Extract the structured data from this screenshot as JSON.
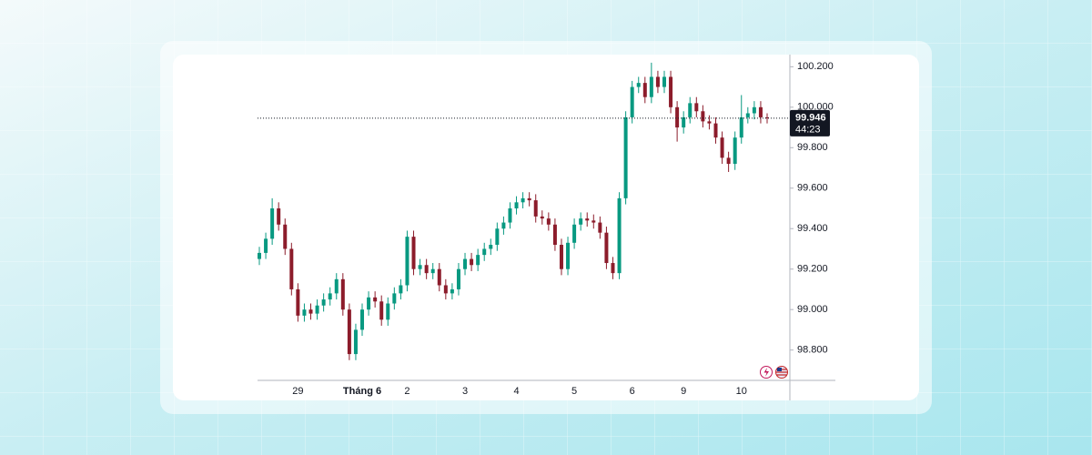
{
  "chart_data": {
    "type": "candlestick",
    "categories": [
      null,
      null,
      null,
      null,
      null,
      null,
      "29",
      null,
      null,
      null,
      null,
      null,
      null,
      null,
      null,
      null,
      "Tháng 6",
      null,
      null,
      null,
      null,
      null,
      null,
      "2",
      null,
      null,
      null,
      null,
      null,
      null,
      null,
      null,
      "3",
      null,
      null,
      null,
      null,
      null,
      null,
      null,
      "4",
      null,
      null,
      null,
      null,
      null,
      null,
      null,
      null,
      "5",
      null,
      null,
      null,
      null,
      null,
      null,
      null,
      null,
      "6",
      null,
      null,
      null,
      null,
      null,
      null,
      null,
      "9",
      null,
      null,
      null,
      null,
      null,
      null,
      null,
      null,
      "10",
      null,
      null,
      null,
      null
    ],
    "open": [
      99.25,
      99.28,
      99.35,
      99.5,
      99.42,
      99.3,
      99.1,
      98.97,
      99.0,
      98.98,
      99.02,
      99.05,
      99.08,
      99.15,
      99.0,
      98.78,
      98.9,
      99.0,
      99.06,
      99.04,
      98.95,
      99.03,
      99.08,
      99.12,
      99.36,
      99.2,
      99.22,
      99.18,
      99.2,
      99.12,
      99.08,
      99.1,
      99.2,
      99.25,
      99.22,
      99.27,
      99.3,
      99.32,
      99.4,
      99.43,
      99.5,
      99.53,
      99.55,
      99.54,
      99.46,
      99.45,
      99.42,
      99.32,
      99.2,
      99.33,
      99.42,
      99.45,
      99.44,
      99.43,
      99.38,
      99.23,
      99.18,
      99.55,
      99.95,
      100.1,
      100.12,
      100.05,
      100.15,
      100.1,
      100.15,
      100.0,
      99.9,
      99.95,
      100.02,
      99.98,
      99.93,
      99.92,
      99.85,
      99.75,
      99.72,
      99.85,
      99.95,
      99.97,
      100.0,
      99.95
    ],
    "high": [
      99.31,
      99.38,
      99.55,
      99.53,
      99.45,
      99.33,
      99.13,
      99.03,
      99.03,
      99.05,
      99.08,
      99.11,
      99.18,
      99.18,
      99.03,
      98.93,
      99.03,
      99.09,
      99.09,
      99.07,
      99.06,
      99.11,
      99.15,
      99.39,
      99.39,
      99.25,
      99.25,
      99.23,
      99.23,
      99.15,
      99.13,
      99.23,
      99.28,
      99.28,
      99.3,
      99.33,
      99.35,
      99.43,
      99.46,
      99.53,
      99.56,
      99.58,
      99.58,
      99.57,
      99.49,
      99.48,
      99.45,
      99.35,
      99.36,
      99.45,
      99.48,
      99.48,
      99.47,
      99.46,
      99.41,
      99.26,
      99.58,
      99.98,
      100.13,
      100.15,
      100.15,
      100.22,
      100.18,
      100.18,
      100.18,
      100.03,
      99.98,
      100.05,
      100.05,
      100.01,
      99.96,
      99.95,
      99.88,
      99.78,
      99.88,
      100.06,
      100.0,
      100.03,
      100.03,
      99.97
    ],
    "low": [
      99.22,
      99.25,
      99.32,
      99.39,
      99.27,
      99.07,
      98.94,
      98.94,
      98.95,
      98.95,
      98.99,
      99.02,
      99.05,
      98.97,
      98.75,
      98.75,
      98.87,
      98.97,
      99.01,
      98.92,
      98.92,
      99.0,
      99.05,
      99.09,
      99.17,
      99.17,
      99.15,
      99.15,
      99.09,
      99.05,
      99.05,
      99.07,
      99.17,
      99.19,
      99.19,
      99.24,
      99.27,
      99.29,
      99.37,
      99.4,
      99.47,
      99.5,
      99.51,
      99.43,
      99.42,
      99.39,
      99.29,
      99.17,
      99.17,
      99.3,
      99.39,
      99.41,
      99.4,
      99.35,
      99.2,
      99.15,
      99.15,
      99.52,
      99.92,
      100.07,
      100.02,
      100.02,
      100.07,
      100.07,
      99.97,
      99.83,
      99.87,
      99.92,
      99.95,
      99.9,
      99.89,
      99.82,
      99.72,
      99.68,
      99.69,
      99.82,
      99.92,
      99.94,
      99.92,
      99.92
    ],
    "close": [
      99.28,
      99.35,
      99.5,
      99.42,
      99.3,
      99.1,
      98.97,
      99.0,
      98.98,
      99.02,
      99.05,
      99.08,
      99.15,
      99.0,
      98.78,
      98.9,
      99.0,
      99.06,
      99.04,
      98.95,
      99.03,
      99.08,
      99.12,
      99.36,
      99.2,
      99.22,
      99.18,
      99.2,
      99.12,
      99.08,
      99.1,
      99.2,
      99.25,
      99.22,
      99.27,
      99.3,
      99.32,
      99.4,
      99.43,
      99.5,
      99.53,
      99.55,
      99.54,
      99.46,
      99.45,
      99.42,
      99.32,
      99.2,
      99.33,
      99.42,
      99.45,
      99.44,
      99.43,
      99.38,
      99.23,
      99.18,
      99.55,
      99.95,
      100.1,
      100.12,
      100.05,
      100.15,
      100.1,
      100.15,
      100.0,
      99.9,
      99.95,
      100.02,
      99.98,
      99.93,
      99.92,
      99.85,
      99.75,
      99.72,
      99.85,
      99.95,
      99.97,
      100.0,
      99.95,
      99.946
    ],
    "up_color": "#089981",
    "down_color": "#8c1c2b",
    "ylim": [
      98.65,
      100.26
    ],
    "yticks": [
      {
        "value": 98.8,
        "label": "98.800"
      },
      {
        "value": 99.0,
        "label": "99.000"
      },
      {
        "value": 99.2,
        "label": "99.200"
      },
      {
        "value": 99.4,
        "label": "99.400"
      },
      {
        "value": 99.6,
        "label": "99.600"
      },
      {
        "value": 99.8,
        "label": "99.800"
      },
      {
        "value": 100.0,
        "label": "100.000"
      },
      {
        "value": 100.2,
        "label": "100.200"
      }
    ],
    "last_price": 99.946,
    "countdown": "44:23"
  }
}
